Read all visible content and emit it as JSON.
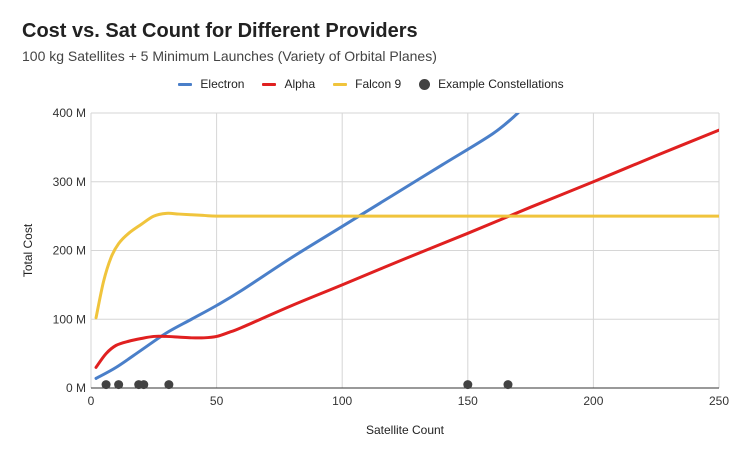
{
  "chart_data": {
    "type": "line",
    "title": "Cost vs. Sat Count for Different Providers",
    "subtitle": "100 kg Satellites + 5 Minimum Launches (Variety of Orbital Planes)",
    "xlabel": "Satellite Count",
    "ylabel": "Total Cost",
    "xlim": [
      0,
      250
    ],
    "ylim": [
      0,
      400
    ],
    "x_ticks": [
      "0",
      "50",
      "100",
      "150",
      "200",
      "250"
    ],
    "y_ticks": [
      "0 M",
      "100 M",
      "200 M",
      "300 M",
      "400 M"
    ],
    "grid": true,
    "legend_position": "top",
    "series": [
      {
        "name": "Electron",
        "color": "#4a7fc9",
        "type": "line",
        "x": [
          2,
          10,
          20,
          30,
          40,
          50,
          60,
          80,
          100,
          120,
          140,
          160,
          170
        ],
        "y": [
          14,
          30,
          55,
          80,
          100,
          120,
          142,
          190,
          235,
          280,
          325,
          370,
          400
        ]
      },
      {
        "name": "Alpha",
        "color": "#e02020",
        "type": "line",
        "x": [
          2,
          6,
          10,
          15,
          20,
          25,
          30,
          35,
          40,
          45,
          50,
          55,
          60,
          80,
          100,
          125,
          150,
          175,
          200,
          225,
          250
        ],
        "y": [
          30,
          50,
          62,
          68,
          72,
          75,
          75,
          74,
          73,
          73,
          75,
          81,
          88,
          120,
          150,
          188,
          225,
          263,
          300,
          338,
          375
        ]
      },
      {
        "name": "Falcon 9",
        "color": "#f0c43c",
        "type": "line",
        "x": [
          2,
          5,
          8,
          11,
          15,
          20,
          25,
          30,
          35,
          40,
          45,
          50,
          60,
          100,
          150,
          200,
          250
        ],
        "y": [
          102,
          155,
          190,
          210,
          225,
          238,
          250,
          254,
          253,
          252,
          251,
          250,
          250,
          250,
          250,
          250,
          250
        ]
      },
      {
        "name": "Example Constellations",
        "color": "#424242",
        "type": "scatter",
        "x": [
          6,
          11,
          19,
          21,
          31,
          150,
          166
        ],
        "y": [
          5,
          5,
          5,
          5,
          5,
          5,
          5
        ]
      }
    ]
  }
}
